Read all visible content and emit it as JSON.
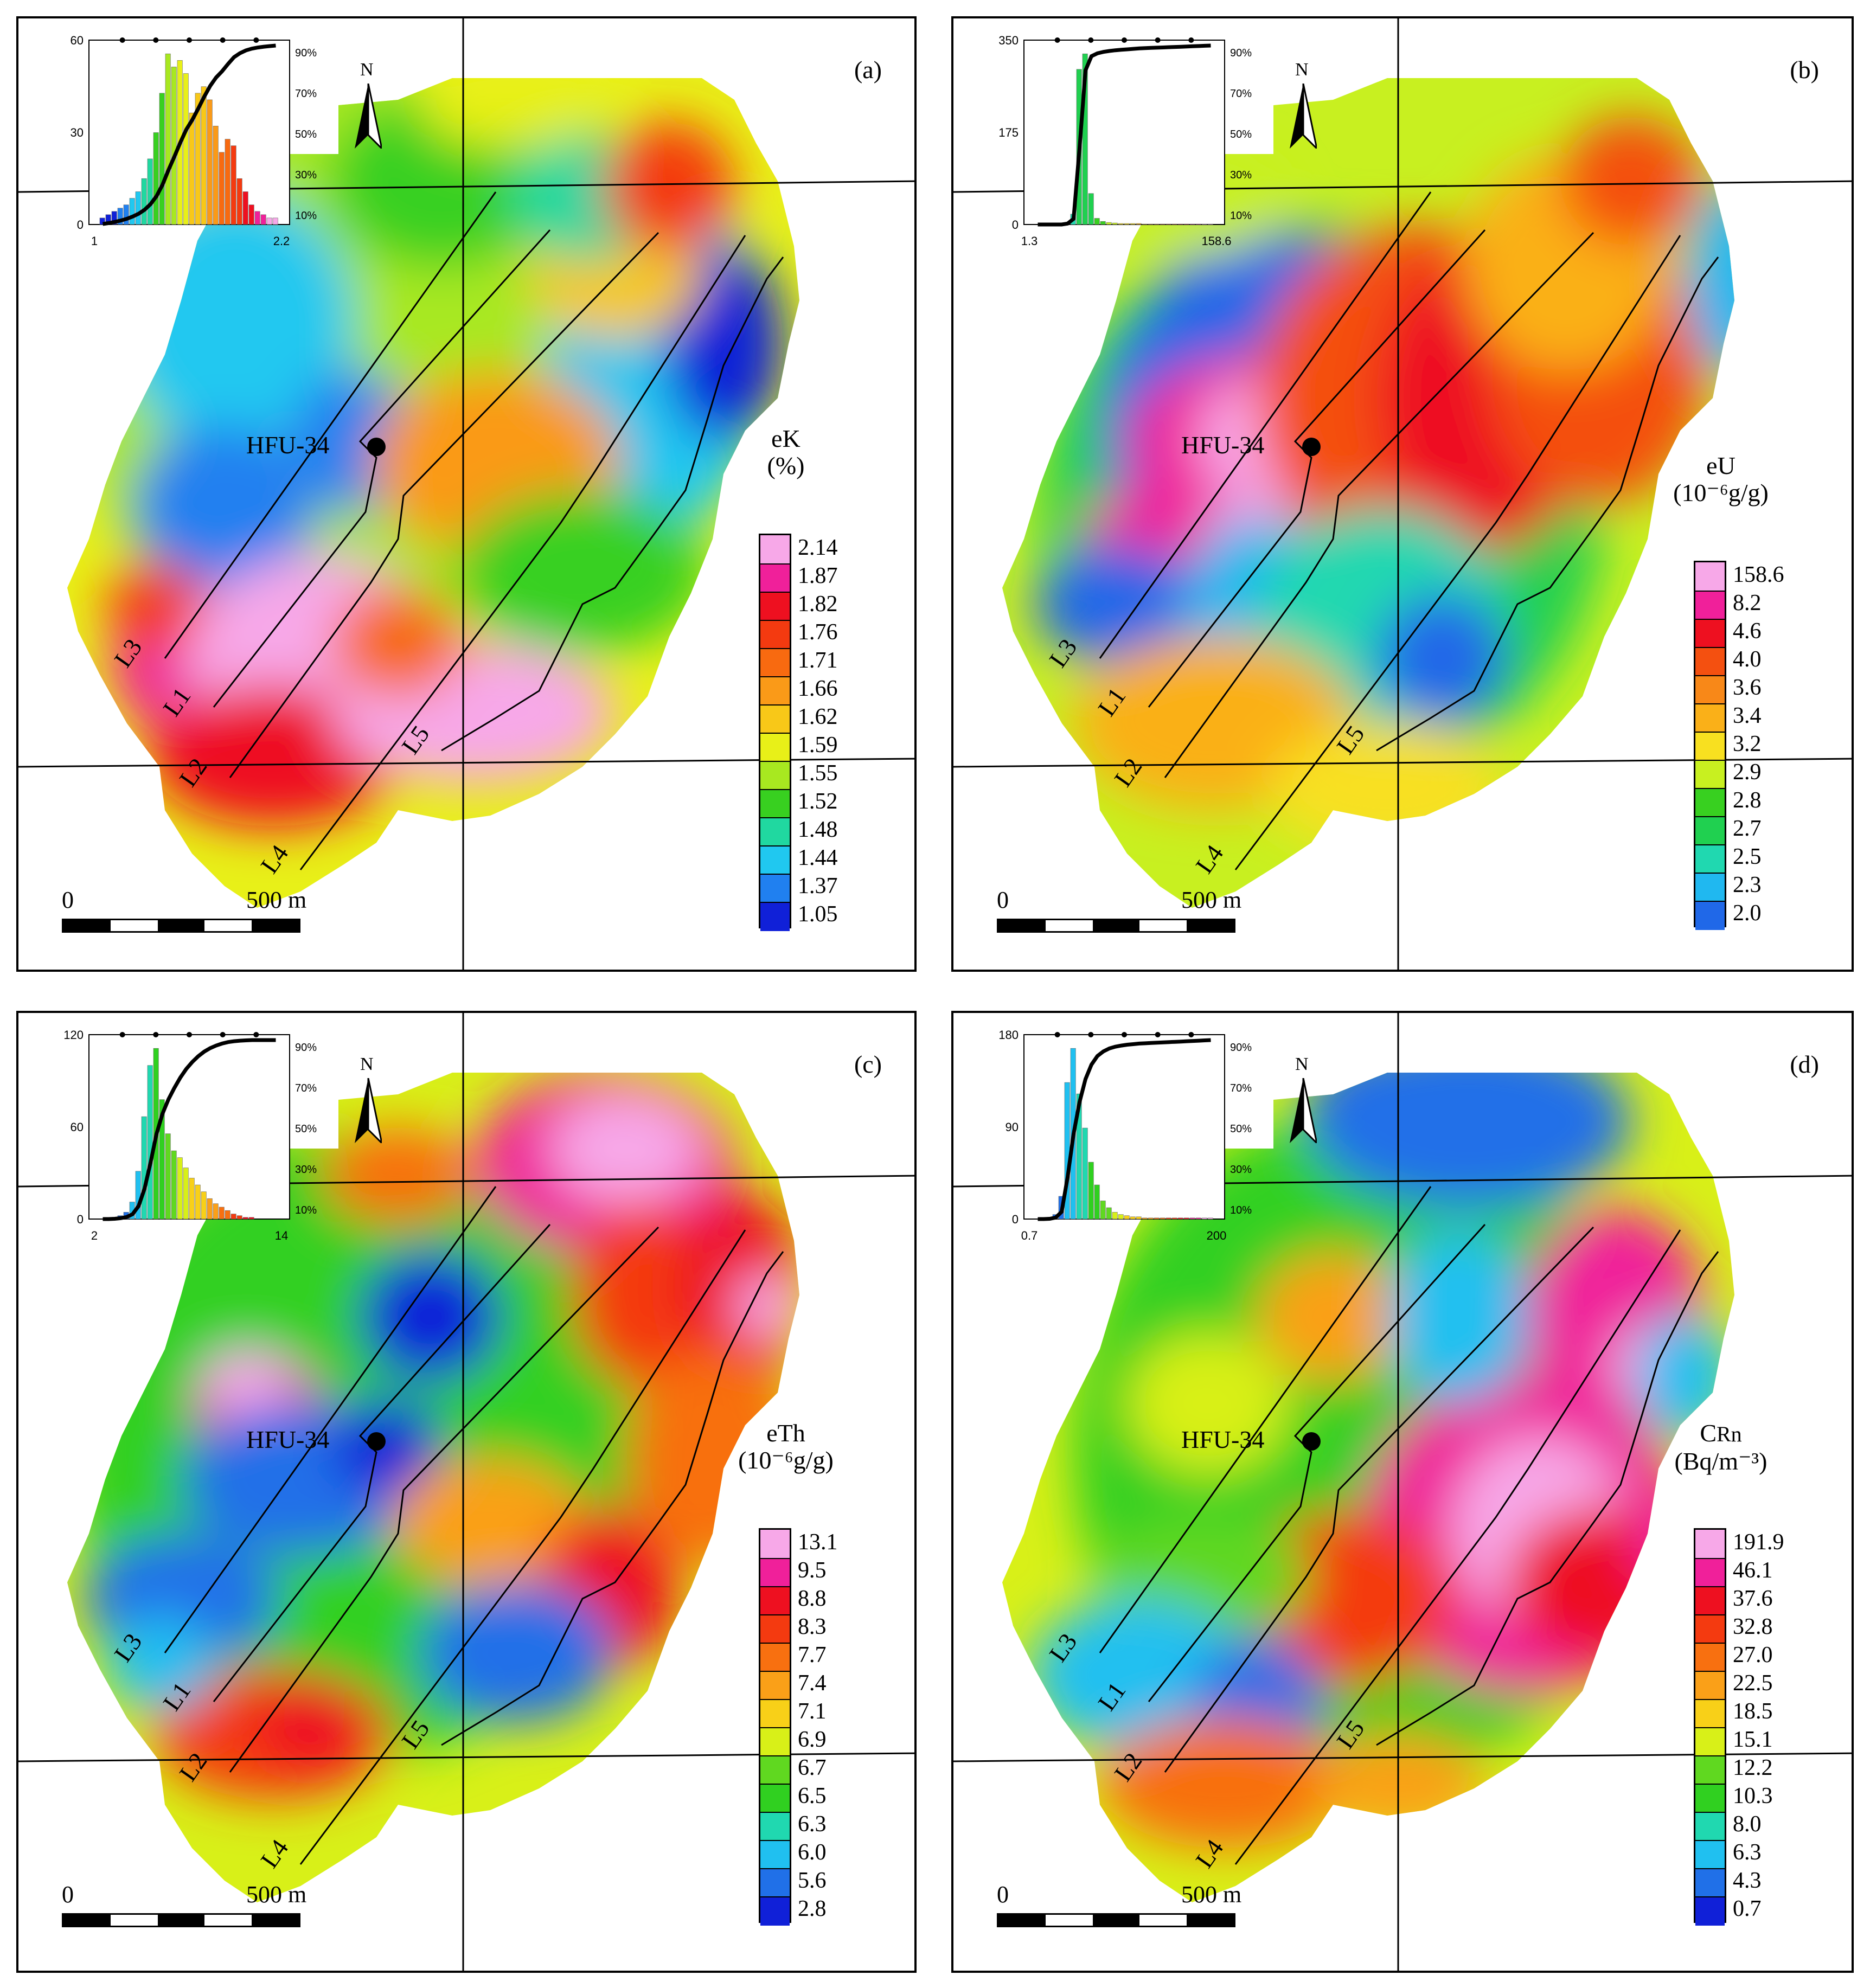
{
  "common": {
    "point_label": "HFU-34",
    "scale_zero": "0",
    "scale_length": "500 m",
    "north_label": "N",
    "profile_lines": [
      "L1",
      "L2",
      "L3",
      "L4",
      "L5"
    ]
  },
  "panels": [
    {
      "id": "a",
      "label": "(a)",
      "legend_title": "eK",
      "legend_unit": "(%)",
      "legend_values": [
        "2.14",
        "1.87",
        "1.82",
        "1.76",
        "1.71",
        "1.66",
        "1.62",
        "1.59",
        "1.55",
        "1.52",
        "1.48",
        "1.44",
        "1.37",
        "1.05"
      ],
      "legend_colors": [
        "#f7a8e8",
        "#f0209a",
        "#ee1020",
        "#f43a10",
        "#f86a10",
        "#fa9a18",
        "#f8c818",
        "#e8f018",
        "#a8e820",
        "#38d020",
        "#20d8a0",
        "#20c8f0",
        "#2080f0",
        "#1020d8"
      ],
      "histogram": {
        "ymax_label": "60",
        "ymid_label": "30",
        "ymin_label": "0",
        "xmin_label": "1",
        "xmax_label": "2.2",
        "pct_labels": [
          "90%",
          "70%",
          "50%",
          "30%",
          "10%"
        ]
      }
    },
    {
      "id": "b",
      "label": "(b)",
      "legend_title": "eU",
      "legend_unit": "(10⁻⁶g/g)",
      "legend_values": [
        "158.6",
        "8.2",
        "4.6",
        "4.0",
        "3.6",
        "3.4",
        "3.2",
        "2.9",
        "2.8",
        "2.7",
        "2.5",
        "2.3",
        "2.0"
      ],
      "legend_colors": [
        "#f7a8e8",
        "#f0209a",
        "#ee1020",
        "#f45010",
        "#f88818",
        "#fab018",
        "#f8e020",
        "#c8f020",
        "#38d020",
        "#20d050",
        "#20d8b0",
        "#20b8f0",
        "#2068e8"
      ],
      "histogram": {
        "ymax_label": "350",
        "ymid_label": "175",
        "ymin_label": "0",
        "xmin_label": "1.3",
        "xmax_label": "158.6",
        "pct_labels": [
          "90%",
          "70%",
          "50%",
          "30%",
          "10%"
        ]
      }
    },
    {
      "id": "c",
      "label": "(c)",
      "legend_title": "eTh",
      "legend_unit": "(10⁻⁶g/g)",
      "legend_values": [
        "13.1",
        "9.5",
        "8.8",
        "8.3",
        "7.7",
        "7.4",
        "7.1",
        "6.9",
        "6.7",
        "6.5",
        "6.3",
        "6.0",
        "5.6",
        "2.8"
      ],
      "legend_colors": [
        "#f7a8e8",
        "#f0209a",
        "#ee1020",
        "#f43a10",
        "#f87010",
        "#faa018",
        "#f8d018",
        "#d8f018",
        "#60d820",
        "#30d020",
        "#20d8b0",
        "#20c0f0",
        "#2070e8",
        "#1020d8"
      ],
      "histogram": {
        "ymax_label": "120",
        "ymid_label": "60",
        "ymin_label": "0",
        "xmin_label": "2",
        "xmax_label": "14",
        "pct_labels": [
          "90%",
          "70%",
          "50%",
          "30%",
          "10%"
        ]
      }
    },
    {
      "id": "d",
      "label": "(d)",
      "legend_title": "C",
      "legend_title_sub": "Rn",
      "legend_unit": "(Bq/m⁻³)",
      "legend_values": [
        "191.9",
        "46.1",
        "37.6",
        "32.8",
        "27.0",
        "22.5",
        "18.5",
        "15.1",
        "12.2",
        "10.3",
        "8.0",
        "6.3",
        "4.3",
        "0.7"
      ],
      "legend_colors": [
        "#f7a8e8",
        "#f0209a",
        "#ee1020",
        "#f43a10",
        "#f87010",
        "#faa018",
        "#f8d018",
        "#d8f018",
        "#60d820",
        "#30d020",
        "#20d8b0",
        "#20c0f0",
        "#2070e8",
        "#1020d8"
      ],
      "histogram": {
        "ymax_label": "180",
        "ymid_label": "90",
        "ymin_label": "0",
        "xmin_label": "0.7",
        "xmax_label": "200",
        "pct_labels": [
          "90%",
          "70%",
          "50%",
          "30%",
          "10%"
        ]
      }
    }
  ]
}
